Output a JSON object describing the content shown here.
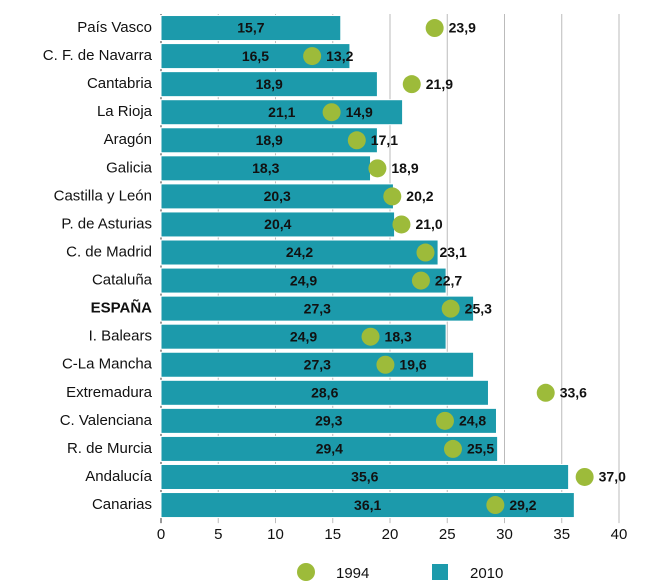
{
  "chart_data": {
    "type": "bar",
    "orientation": "horizontal",
    "categories": [
      "País Vasco",
      "C. F. de Navarra",
      "Cantabria",
      "La Rioja",
      "Aragón",
      "Galicia",
      "Castilla y León",
      "P. de Asturias",
      "C. de Madrid",
      "Cataluña",
      "ESPAÑA",
      "I. Balears",
      "C-La Mancha",
      "Extremadura",
      "C. Valenciana",
      "R. de Murcia",
      "Andalucía",
      "Canarias"
    ],
    "highlight": 10,
    "series": [
      {
        "name": "1994",
        "style": "dot",
        "color": "#9dbb3a",
        "values": [
          23.9,
          13.2,
          21.9,
          14.9,
          17.1,
          18.9,
          20.2,
          21.0,
          23.1,
          22.7,
          25.3,
          18.3,
          19.6,
          33.6,
          24.8,
          25.5,
          37.0,
          29.2
        ],
        "value_labels": [
          "23,9",
          "13,2",
          "21,9",
          "14,9",
          "17,1",
          "18,9",
          "20,2",
          "21,0",
          "23,1",
          "22,7",
          "25,3",
          "18,3",
          "19,6",
          "33,6",
          "24,8",
          "25,5",
          "37,0",
          "29,2"
        ]
      },
      {
        "name": "2010",
        "style": "bar",
        "color": "#1c9aab",
        "values": [
          15.7,
          16.5,
          18.9,
          21.1,
          18.9,
          18.3,
          20.3,
          20.4,
          24.2,
          24.9,
          27.3,
          24.9,
          27.3,
          28.6,
          29.3,
          29.4,
          35.6,
          36.1
        ],
        "value_labels": [
          "15,7",
          "16,5",
          "18,9",
          "21,1",
          "18,9",
          "18,3",
          "20,3",
          "20,4",
          "24,2",
          "24,9",
          "27,3",
          "24,9",
          "27,3",
          "28,6",
          "29,3",
          "29,4",
          "35,6",
          "36,1"
        ]
      }
    ],
    "xlim": [
      0,
      40
    ],
    "xticks": [
      0,
      5,
      10,
      15,
      20,
      25,
      30,
      35,
      40
    ],
    "grid": true
  }
}
